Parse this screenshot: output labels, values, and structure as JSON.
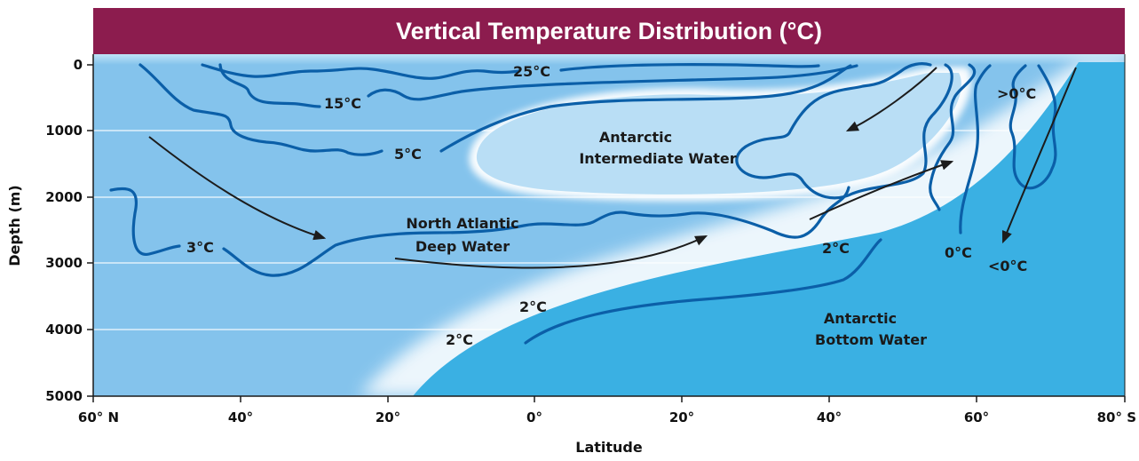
{
  "title": "Vertical Temperature Distribution (°C)",
  "y_axis": {
    "label": "Depth (m)",
    "ticks": [
      "0",
      "1000",
      "2000",
      "3000",
      "4000",
      "5000"
    ]
  },
  "x_axis": {
    "label": "Latitude",
    "ticks": [
      "60° N",
      "40°",
      "20°",
      "0°",
      "20°",
      "40°",
      "60°",
      "80° S"
    ]
  },
  "water_masses": {
    "aaiw_line1": "Antarctic",
    "aaiw_line2": "Intermediate Water",
    "nadw_line1": "North Atlantic",
    "nadw_line2": "Deep Water",
    "aabw_line1": "Antarctic",
    "aabw_line2": "Bottom Water"
  },
  "isotherms": {
    "t25": "25°C",
    "t15": "15°C",
    "t5": "5°C",
    "t3": "3°C",
    "t2_nadw": "2°C",
    "t2_upper": "2°C",
    "t2_lower": "2°C",
    "t0": "0°C",
    "t_above0": ">0°C",
    "t_below0": "<0°C"
  },
  "colors": {
    "title_bar": "#8c1c4e",
    "ocean": "#84c3ec",
    "bottom_water": "#3ab0e3",
    "intermediate_water": "#b9def5",
    "isotherm": "#0b5fa8",
    "flow_arrow": "#1c1c1c"
  }
}
